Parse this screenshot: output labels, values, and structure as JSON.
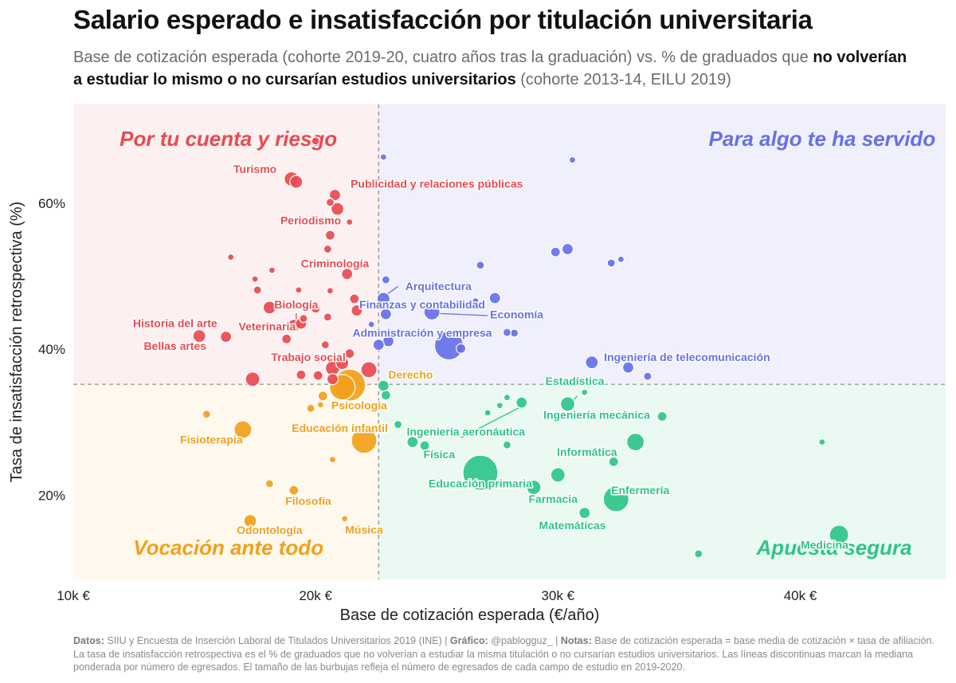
{
  "header": {
    "title": "Salario esperado e insatisfacción por titulación universitaria",
    "subtitle_a": "Base de cotización esperada (cohorte 2019-20, cuatro años tras la graduación) vs. % de graduados que ",
    "subtitle_b": "no volverían a estudiar lo mismo o no cursarían estudios universitarios",
    "subtitle_c": " (cohorte 2013-14, EILU 2019)"
  },
  "footer": {
    "datos_label": "Datos:",
    "datos_text": " SIIU y Encuesta de Inserción Laboral de Titulados Universitarios 2019 (INE) | ",
    "grafico_label": "Gráfico:",
    "grafico_text": " @pablogguz_ | ",
    "notas_label": "Notas:",
    "notas_text": " Base de cotización esperada = base media de cotización × tasa de afiliación. La tasa de insatisfacción retrospectiva es el % de graduados que no volverían a estudiar la misma titulación o no cursarían estudios universitarios. Las líneas discontinuas marcan la mediana ponderada por número de egresados. El tamaño de las burbujas refleja el número de egresados de cada campo de estudio en 2019-2020."
  },
  "chart_data": {
    "type": "scatter",
    "title": "Salario esperado e insatisfacción por titulación universitaria",
    "xlabel": "Base de cotización esperada (€/año)",
    "ylabel": "Tasa de insatisfacción retrospectiva (%)",
    "xlim": [
      10000,
      46000
    ],
    "ylim": [
      8.5,
      73.5
    ],
    "x_ticks": [
      10000,
      20000,
      30000,
      40000
    ],
    "x_tick_labels": [
      "10k €",
      "20k €",
      "30k €",
      "40k €"
    ],
    "y_ticks": [
      20,
      40,
      60
    ],
    "y_tick_labels": [
      "20%",
      "40%",
      "60%"
    ],
    "median_x": 22600,
    "median_y": 35.2,
    "colors": {
      "tl": "#e84a50",
      "tr": "#6670e8",
      "bl": "#f2a01a",
      "br": "#2ec48a"
    },
    "quadrants": [
      {
        "key": "tl",
        "label": "Por tu cuenta y riesgo",
        "bg": "#fdf0f0"
      },
      {
        "key": "tr",
        "label": "Para algo te ha servido",
        "bg": "#eff0fc"
      },
      {
        "key": "bl",
        "label": "Vocación ante todo",
        "bg": "#fef9ec"
      },
      {
        "key": "br",
        "label": "Apuesta segura",
        "bg": "#eafaf3"
      }
    ],
    "points": [
      {
        "x": 20000,
        "y": 68.5,
        "r": 5,
        "q": "tl"
      },
      {
        "x": 19000,
        "y": 63.3,
        "r": 9,
        "q": "tl"
      },
      {
        "x": 19200,
        "y": 62.9,
        "r": 8,
        "q": "tl"
      },
      {
        "x": 20800,
        "y": 61.1,
        "r": 7,
        "q": "tl"
      },
      {
        "x": 20900,
        "y": 59.2,
        "r": 8,
        "q": "tl"
      },
      {
        "x": 20600,
        "y": 60.1,
        "r": 5,
        "q": "tl"
      },
      {
        "x": 21400,
        "y": 57.4,
        "r": 4,
        "q": "tl"
      },
      {
        "x": 20600,
        "y": 55.6,
        "r": 6,
        "q": "tl"
      },
      {
        "x": 20500,
        "y": 53.7,
        "r": 5,
        "q": "tl"
      },
      {
        "x": 16500,
        "y": 52.6,
        "r": 4,
        "q": "tl"
      },
      {
        "x": 21300,
        "y": 50.3,
        "r": 7,
        "q": "tl"
      },
      {
        "x": 17500,
        "y": 49.6,
        "r": 4,
        "q": "tl"
      },
      {
        "x": 18200,
        "y": 50.8,
        "r": 4,
        "q": "tl"
      },
      {
        "x": 17600,
        "y": 48.1,
        "r": 5,
        "q": "tl"
      },
      {
        "x": 19300,
        "y": 48.1,
        "r": 4,
        "q": "tl"
      },
      {
        "x": 20600,
        "y": 48.0,
        "r": 4,
        "q": "tl"
      },
      {
        "x": 21600,
        "y": 46.9,
        "r": 6,
        "q": "tl"
      },
      {
        "x": 18100,
        "y": 45.7,
        "r": 8,
        "q": "tl"
      },
      {
        "x": 20000,
        "y": 45.6,
        "r": 6,
        "q": "tl"
      },
      {
        "x": 19500,
        "y": 44.2,
        "r": 5,
        "q": "tl"
      },
      {
        "x": 20500,
        "y": 44.4,
        "r": 5,
        "q": "tl"
      },
      {
        "x": 19400,
        "y": 43.5,
        "r": 7,
        "q": "tl"
      },
      {
        "x": 19100,
        "y": 43.2,
        "r": 8,
        "q": "tl"
      },
      {
        "x": 21700,
        "y": 45.3,
        "r": 7,
        "q": "tl"
      },
      {
        "x": 15200,
        "y": 41.8,
        "r": 8,
        "q": "tl"
      },
      {
        "x": 16300,
        "y": 41.7,
        "r": 7,
        "q": "tl"
      },
      {
        "x": 18800,
        "y": 41.4,
        "r": 6,
        "q": "tl"
      },
      {
        "x": 20400,
        "y": 40.6,
        "r": 5,
        "q": "tl"
      },
      {
        "x": 21400,
        "y": 39.4,
        "r": 6,
        "q": "tl"
      },
      {
        "x": 21100,
        "y": 38.1,
        "r": 8,
        "q": "tl"
      },
      {
        "x": 20700,
        "y": 37.4,
        "r": 9,
        "q": "tl"
      },
      {
        "x": 22200,
        "y": 37.2,
        "r": 10,
        "q": "tl"
      },
      {
        "x": 19400,
        "y": 36.5,
        "r": 6,
        "q": "tl"
      },
      {
        "x": 20100,
        "y": 36.4,
        "r": 6,
        "q": "tl"
      },
      {
        "x": 20700,
        "y": 35.9,
        "r": 7,
        "q": "tl"
      },
      {
        "x": 17400,
        "y": 35.9,
        "r": 9,
        "q": "tl"
      },
      {
        "x": 22800,
        "y": 66.3,
        "r": 4,
        "q": "tr"
      },
      {
        "x": 22900,
        "y": 49.5,
        "r": 5,
        "q": "tr"
      },
      {
        "x": 22800,
        "y": 46.9,
        "r": 8,
        "q": "tr"
      },
      {
        "x": 22900,
        "y": 44.8,
        "r": 7,
        "q": "tr"
      },
      {
        "x": 22300,
        "y": 43.4,
        "r": 4,
        "q": "tr"
      },
      {
        "x": 23000,
        "y": 41.1,
        "r": 7,
        "q": "tr"
      },
      {
        "x": 22600,
        "y": 40.6,
        "r": 7,
        "q": "tr"
      },
      {
        "x": 24800,
        "y": 45.1,
        "r": 10,
        "q": "tr"
      },
      {
        "x": 25500,
        "y": 40.5,
        "r": 18,
        "q": "tr"
      },
      {
        "x": 26000,
        "y": 40.1,
        "r": 6,
        "q": "tr"
      },
      {
        "x": 26600,
        "y": 46.6,
        "r": 4,
        "q": "tr"
      },
      {
        "x": 27400,
        "y": 47.0,
        "r": 7,
        "q": "tr"
      },
      {
        "x": 26800,
        "y": 51.5,
        "r": 5,
        "q": "tr"
      },
      {
        "x": 28200,
        "y": 42.2,
        "r": 5,
        "q": "tr"
      },
      {
        "x": 27900,
        "y": 42.3,
        "r": 5,
        "q": "tr"
      },
      {
        "x": 29900,
        "y": 53.3,
        "r": 6,
        "q": "tr"
      },
      {
        "x": 30400,
        "y": 53.7,
        "r": 7,
        "q": "tr"
      },
      {
        "x": 30600,
        "y": 65.9,
        "r": 4,
        "q": "tr"
      },
      {
        "x": 32200,
        "y": 51.8,
        "r": 5,
        "q": "tr"
      },
      {
        "x": 32600,
        "y": 52.3,
        "r": 4,
        "q": "tr"
      },
      {
        "x": 31400,
        "y": 38.2,
        "r": 8,
        "q": "tr"
      },
      {
        "x": 32900,
        "y": 37.5,
        "r": 7,
        "q": "tr"
      },
      {
        "x": 33700,
        "y": 36.3,
        "r": 5,
        "q": "tr"
      },
      {
        "x": 15500,
        "y": 31.1,
        "r": 5,
        "q": "bl"
      },
      {
        "x": 17000,
        "y": 29.0,
        "r": 11,
        "q": "bl"
      },
      {
        "x": 19800,
        "y": 31.9,
        "r": 5,
        "q": "bl"
      },
      {
        "x": 20300,
        "y": 33.6,
        "r": 6,
        "q": "bl"
      },
      {
        "x": 21100,
        "y": 34.8,
        "r": 16,
        "q": "bl"
      },
      {
        "x": 21400,
        "y": 35.1,
        "r": 20,
        "q": "bl"
      },
      {
        "x": 22000,
        "y": 27.5,
        "r": 16,
        "q": "bl"
      },
      {
        "x": 20200,
        "y": 32.4,
        "r": 4,
        "q": "bl"
      },
      {
        "x": 20700,
        "y": 24.9,
        "r": 4,
        "q": "bl"
      },
      {
        "x": 18100,
        "y": 21.6,
        "r": 5,
        "q": "bl"
      },
      {
        "x": 19100,
        "y": 20.7,
        "r": 6,
        "q": "bl"
      },
      {
        "x": 17300,
        "y": 16.5,
        "r": 8,
        "q": "bl"
      },
      {
        "x": 21200,
        "y": 16.8,
        "r": 4,
        "q": "bl"
      },
      {
        "x": 22800,
        "y": 35.0,
        "r": 7,
        "q": "br"
      },
      {
        "x": 22900,
        "y": 33.7,
        "r": 6,
        "q": "br"
      },
      {
        "x": 23400,
        "y": 29.7,
        "r": 5,
        "q": "br"
      },
      {
        "x": 24000,
        "y": 27.3,
        "r": 7,
        "q": "br"
      },
      {
        "x": 24500,
        "y": 26.8,
        "r": 6,
        "q": "br"
      },
      {
        "x": 26800,
        "y": 23.1,
        "r": 22,
        "q": "br"
      },
      {
        "x": 27900,
        "y": 26.9,
        "r": 5,
        "q": "br"
      },
      {
        "x": 27100,
        "y": 31.3,
        "r": 4,
        "q": "br"
      },
      {
        "x": 27600,
        "y": 32.3,
        "r": 4,
        "q": "br"
      },
      {
        "x": 27900,
        "y": 33.4,
        "r": 4,
        "q": "br"
      },
      {
        "x": 28500,
        "y": 32.7,
        "r": 7,
        "q": "br"
      },
      {
        "x": 29000,
        "y": 21.1,
        "r": 9,
        "q": "br"
      },
      {
        "x": 30000,
        "y": 22.8,
        "r": 9,
        "q": "br"
      },
      {
        "x": 30400,
        "y": 32.5,
        "r": 9,
        "q": "br"
      },
      {
        "x": 31100,
        "y": 34.1,
        "r": 4,
        "q": "br"
      },
      {
        "x": 31100,
        "y": 17.6,
        "r": 7,
        "q": "br"
      },
      {
        "x": 32300,
        "y": 24.6,
        "r": 6,
        "q": "br"
      },
      {
        "x": 32400,
        "y": 19.5,
        "r": 16,
        "q": "br"
      },
      {
        "x": 33200,
        "y": 27.3,
        "r": 11,
        "q": "br"
      },
      {
        "x": 34300,
        "y": 30.8,
        "r": 6,
        "q": "br"
      },
      {
        "x": 35800,
        "y": 12.0,
        "r": 5,
        "q": "br"
      },
      {
        "x": 40900,
        "y": 27.3,
        "r": 4,
        "q": "br"
      },
      {
        "x": 41600,
        "y": 14.6,
        "r": 12,
        "q": "br"
      }
    ],
    "labels": [
      {
        "text": "Turismo",
        "x": 17500,
        "y": 64.5,
        "q": "tl",
        "anchor": "middle"
      },
      {
        "text": "Publicidad y relaciones públicas",
        "x": 25000,
        "y": 62.5,
        "q": "tl",
        "anchor": "middle"
      },
      {
        "text": "Periodismo",
        "x": 19800,
        "y": 57.5,
        "q": "tl",
        "anchor": "middle"
      },
      {
        "text": "Criminología",
        "x": 20800,
        "y": 51.6,
        "q": "tl",
        "anchor": "middle"
      },
      {
        "text": "Biología",
        "x": 19200,
        "y": 46.0,
        "q": "tl",
        "anchor": "middle"
      },
      {
        "text": "Historia del arte",
        "x": 14200,
        "y": 43.4,
        "q": "tl",
        "anchor": "middle"
      },
      {
        "text": "Veterinaria",
        "x": 18000,
        "y": 43.0,
        "q": "tl",
        "anchor": "middle"
      },
      {
        "text": "Bellas artes",
        "x": 14200,
        "y": 40.3,
        "q": "tl",
        "anchor": "middle"
      },
      {
        "text": "Trabajo social",
        "x": 19700,
        "y": 38.8,
        "q": "tl",
        "anchor": "middle"
      },
      {
        "text": "Arquitectura",
        "x": 23700,
        "y": 48.5,
        "q": "tr",
        "anchor": "start"
      },
      {
        "text": "Finanzas y contabilidad",
        "x": 24400,
        "y": 46.0,
        "q": "tr",
        "anchor": "middle"
      },
      {
        "text": "Economía",
        "x": 28300,
        "y": 44.6,
        "q": "tr",
        "anchor": "middle"
      },
      {
        "text": "Administración y empresa",
        "x": 24400,
        "y": 42.1,
        "q": "tr",
        "anchor": "middle"
      },
      {
        "text": "Ingeniería de telecomunicación",
        "x": 31900,
        "y": 38.8,
        "q": "tr",
        "anchor": "start"
      },
      {
        "text": "Derecho",
        "x": 23000,
        "y": 36.4,
        "q": "bl",
        "anchor": "start"
      },
      {
        "text": "Psicología",
        "x": 21800,
        "y": 32.2,
        "q": "bl",
        "anchor": "middle"
      },
      {
        "text": "Educación infantil",
        "x": 21000,
        "y": 29.1,
        "q": "bl",
        "anchor": "middle"
      },
      {
        "text": "Fisioterapia",
        "x": 15700,
        "y": 27.5,
        "q": "bl",
        "anchor": "middle"
      },
      {
        "text": "Filosofía",
        "x": 19700,
        "y": 19.1,
        "q": "bl",
        "anchor": "middle"
      },
      {
        "text": "Odontología",
        "x": 18100,
        "y": 15.1,
        "q": "bl",
        "anchor": "middle"
      },
      {
        "text": "Música",
        "x": 22000,
        "y": 15.2,
        "q": "bl",
        "anchor": "middle"
      },
      {
        "text": "Estadística",
        "x": 30700,
        "y": 35.5,
        "q": "br",
        "anchor": "middle"
      },
      {
        "text": "Ingeniería mecánica",
        "x": 31600,
        "y": 30.9,
        "q": "br",
        "anchor": "middle"
      },
      {
        "text": "Ingeniería aeronáutica",
        "x": 26200,
        "y": 28.6,
        "q": "br",
        "anchor": "middle"
      },
      {
        "text": "Física",
        "x": 25100,
        "y": 25.5,
        "q": "br",
        "anchor": "middle"
      },
      {
        "text": "Informática",
        "x": 31200,
        "y": 25.8,
        "q": "br",
        "anchor": "middle"
      },
      {
        "text": "Educación primaria",
        "x": 26800,
        "y": 21.5,
        "q": "br",
        "anchor": "middle"
      },
      {
        "text": "Enfermería",
        "x": 33400,
        "y": 20.6,
        "q": "br",
        "anchor": "middle"
      },
      {
        "text": "Farmacia",
        "x": 29800,
        "y": 19.4,
        "q": "br",
        "anchor": "middle"
      },
      {
        "text": "Matemáticas",
        "x": 30600,
        "y": 15.8,
        "q": "br",
        "anchor": "middle"
      },
      {
        "text": "Medicina",
        "x": 41000,
        "y": 13.1,
        "q": "br",
        "anchor": "middle"
      }
    ],
    "leaders": [
      {
        "x1": 21700,
        "y1": 36.1,
        "x2": 21900,
        "y2": 34.6,
        "q": "bl"
      },
      {
        "x1": 23400,
        "y1": 48.6,
        "x2": 22900,
        "y2": 47.4,
        "q": "tr"
      },
      {
        "x1": 27100,
        "y1": 44.6,
        "x2": 25000,
        "y2": 44.9,
        "q": "tr"
      },
      {
        "x1": 26000,
        "y1": 27.9,
        "x2": 28400,
        "y2": 32.0,
        "q": "br"
      },
      {
        "x1": 30800,
        "y1": 33.6,
        "x2": 30600,
        "y2": 32.9,
        "q": "br"
      },
      {
        "x1": 19200,
        "y1": 44.9,
        "x2": 19200,
        "y2": 43.6,
        "q": "tl"
      }
    ]
  }
}
